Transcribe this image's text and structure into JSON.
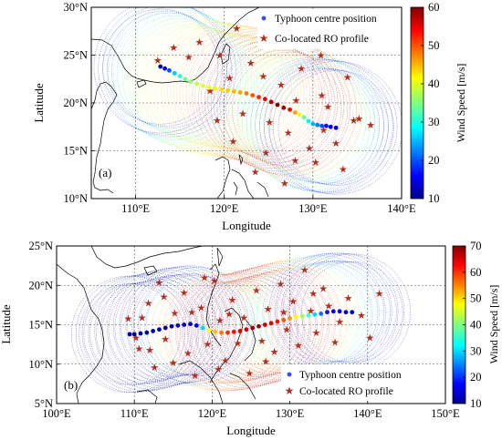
{
  "chart_data": [
    {
      "type": "scatter",
      "panel_label": "(a)",
      "xlabel": "Longitude",
      "ylabel": "Latitude",
      "xlim": [
        105,
        140
      ],
      "ylim": [
        10,
        30
      ],
      "x_ticks": [
        {
          "value": 110,
          "label": "110°E"
        },
        {
          "value": 120,
          "label": "120°E"
        },
        {
          "value": 130,
          "label": "130°E"
        },
        {
          "value": 140,
          "label": "140°E"
        }
      ],
      "y_ticks": [
        {
          "value": 10,
          "label": "10°N"
        },
        {
          "value": 15,
          "label": "15°N"
        },
        {
          "value": 20,
          "label": "20°N"
        },
        {
          "value": 25,
          "label": "25°N"
        },
        {
          "value": 30,
          "label": "30°N"
        }
      ],
      "grid": true,
      "legend_position": "top-right",
      "legend": [
        "Typhoon centre position",
        "Co-located RO profile"
      ],
      "colorbar": {
        "label": "Wind Speed [m/s]",
        "min": 10,
        "max": 60,
        "ticks": [
          {
            "value": 10,
            "label": "10"
          },
          {
            "value": 20,
            "label": "20"
          },
          {
            "value": 30,
            "label": "30"
          },
          {
            "value": 40,
            "label": "40"
          },
          {
            "value": 50,
            "label": "50"
          },
          {
            "value": 60,
            "label": "60"
          }
        ]
      },
      "track": [
        {
          "lon": 132.6,
          "lat": 17.4,
          "ws": 13
        },
        {
          "lon": 132.0,
          "lat": 17.5,
          "ws": 15
        },
        {
          "lon": 131.5,
          "lat": 17.6,
          "ws": 17
        },
        {
          "lon": 131.0,
          "lat": 17.6,
          "ws": 20
        },
        {
          "lon": 130.5,
          "lat": 17.7,
          "ws": 22
        },
        {
          "lon": 130.0,
          "lat": 17.8,
          "ws": 25
        },
        {
          "lon": 129.5,
          "lat": 18.1,
          "ws": 28
        },
        {
          "lon": 129.0,
          "lat": 18.5,
          "ws": 34
        },
        {
          "lon": 128.5,
          "lat": 18.8,
          "ws": 40
        },
        {
          "lon": 128.0,
          "lat": 19.0,
          "ws": 46
        },
        {
          "lon": 127.4,
          "lat": 19.3,
          "ws": 54
        },
        {
          "lon": 126.7,
          "lat": 19.5,
          "ws": 58
        },
        {
          "lon": 126.0,
          "lat": 19.8,
          "ws": 60
        },
        {
          "lon": 125.3,
          "lat": 20.1,
          "ws": 58
        },
        {
          "lon": 124.6,
          "lat": 20.4,
          "ws": 55
        },
        {
          "lon": 123.9,
          "lat": 20.6,
          "ws": 52
        },
        {
          "lon": 123.2,
          "lat": 20.8,
          "ws": 50
        },
        {
          "lon": 122.5,
          "lat": 21.0,
          "ws": 48
        },
        {
          "lon": 121.8,
          "lat": 21.1,
          "ws": 46
        },
        {
          "lon": 121.1,
          "lat": 21.2,
          "ws": 45
        },
        {
          "lon": 120.4,
          "lat": 21.3,
          "ws": 44
        },
        {
          "lon": 119.7,
          "lat": 21.4,
          "ws": 43
        },
        {
          "lon": 119.0,
          "lat": 21.5,
          "ws": 42
        },
        {
          "lon": 118.3,
          "lat": 21.6,
          "ws": 41
        },
        {
          "lon": 117.6,
          "lat": 21.8,
          "ws": 40
        },
        {
          "lon": 116.9,
          "lat": 22.0,
          "ws": 38
        },
        {
          "lon": 116.2,
          "lat": 22.2,
          "ws": 36
        },
        {
          "lon": 115.6,
          "lat": 22.5,
          "ws": 34
        },
        {
          "lon": 115.0,
          "lat": 22.8,
          "ws": 30
        },
        {
          "lon": 114.4,
          "lat": 23.1,
          "ws": 26
        },
        {
          "lon": 113.8,
          "lat": 23.4,
          "ws": 20
        },
        {
          "lon": 113.3,
          "lat": 23.6,
          "ws": 14
        },
        {
          "lon": 112.8,
          "lat": 23.8,
          "ws": 11
        }
      ],
      "ro_profiles": [
        [
          112.5,
          24.5
        ],
        [
          114.3,
          25.8
        ],
        [
          116.0,
          24.8
        ],
        [
          117.2,
          26.4
        ],
        [
          119.5,
          25.0
        ],
        [
          121.4,
          27.8
        ],
        [
          123.0,
          24.2
        ],
        [
          118.4,
          21.3
        ],
        [
          120.6,
          22.6
        ],
        [
          122.1,
          18.9
        ],
        [
          124.4,
          22.8
        ],
        [
          125.1,
          18.0
        ],
        [
          126.4,
          21.9
        ],
        [
          127.2,
          16.9
        ],
        [
          128.1,
          20.3
        ],
        [
          128.7,
          23.6
        ],
        [
          129.6,
          15.3
        ],
        [
          130.3,
          13.8
        ],
        [
          131.2,
          17.2
        ],
        [
          131.7,
          19.6
        ],
        [
          132.6,
          15.8
        ],
        [
          133.4,
          13.1
        ],
        [
          134.6,
          18.2
        ],
        [
          135.2,
          18.4
        ],
        [
          136.5,
          17.7
        ],
        [
          126.8,
          11.6
        ],
        [
          124.7,
          14.8
        ],
        [
          123.5,
          12.8
        ],
        [
          128.0,
          14.0
        ],
        [
          131.0,
          20.8
        ],
        [
          119.2,
          18.2
        ],
        [
          121.0,
          16.0
        ],
        [
          130.9,
          25.0
        ],
        [
          133.9,
          22.7
        ]
      ]
    },
    {
      "type": "scatter",
      "panel_label": "(b)",
      "xlabel": "Longitude",
      "ylabel": "Latitude",
      "xlim": [
        100,
        150
      ],
      "ylim": [
        5,
        25
      ],
      "x_ticks": [
        {
          "value": 100,
          "label": "100°E"
        },
        {
          "value": 110,
          "label": "110°E"
        },
        {
          "value": 120,
          "label": "120°E"
        },
        {
          "value": 130,
          "label": "130°E"
        },
        {
          "value": 140,
          "label": "140°E"
        },
        {
          "value": 150,
          "label": "150°E"
        }
      ],
      "y_ticks": [
        {
          "value": 5,
          "label": "5°N"
        },
        {
          "value": 10,
          "label": "10°N"
        },
        {
          "value": 15,
          "label": "15°N"
        },
        {
          "value": 20,
          "label": "20°N"
        },
        {
          "value": 25,
          "label": "25°N"
        }
      ],
      "grid": true,
      "legend_position": "bottom-right",
      "legend": [
        "Typhoon centre position",
        "Co-located RO profile"
      ],
      "colorbar": {
        "label": "Wind Speed [m/s]",
        "min": 10,
        "max": 70,
        "ticks": [
          {
            "value": 10,
            "label": "10"
          },
          {
            "value": 20,
            "label": "20"
          },
          {
            "value": 30,
            "label": "30"
          },
          {
            "value": 40,
            "label": "40"
          },
          {
            "value": 50,
            "label": "50"
          },
          {
            "value": 60,
            "label": "60"
          },
          {
            "value": 70,
            "label": "70"
          }
        ]
      },
      "track": [
        {
          "lon": 138.0,
          "lat": 16.6,
          "ws": 15
        },
        {
          "lon": 137.2,
          "lat": 16.6,
          "ws": 15
        },
        {
          "lon": 136.4,
          "lat": 16.7,
          "ws": 16
        },
        {
          "lon": 135.6,
          "lat": 16.7,
          "ws": 17
        },
        {
          "lon": 134.8,
          "lat": 16.6,
          "ws": 18
        },
        {
          "lon": 134.0,
          "lat": 16.4,
          "ws": 24
        },
        {
          "lon": 133.2,
          "lat": 16.3,
          "ws": 30
        },
        {
          "lon": 132.4,
          "lat": 16.2,
          "ws": 36
        },
        {
          "lon": 131.6,
          "lat": 16.1,
          "ws": 42
        },
        {
          "lon": 130.8,
          "lat": 16.0,
          "ws": 48
        },
        {
          "lon": 130.0,
          "lat": 15.8,
          "ws": 54
        },
        {
          "lon": 129.2,
          "lat": 15.6,
          "ws": 58
        },
        {
          "lon": 128.4,
          "lat": 15.4,
          "ws": 62
        },
        {
          "lon": 127.6,
          "lat": 15.2,
          "ws": 64
        },
        {
          "lon": 126.8,
          "lat": 15.0,
          "ws": 66
        },
        {
          "lon": 126.0,
          "lat": 14.8,
          "ws": 68
        },
        {
          "lon": 125.2,
          "lat": 14.6,
          "ws": 68
        },
        {
          "lon": 124.4,
          "lat": 14.4,
          "ws": 66
        },
        {
          "lon": 123.6,
          "lat": 14.2,
          "ws": 64
        },
        {
          "lon": 122.8,
          "lat": 14.1,
          "ws": 62
        },
        {
          "lon": 122.0,
          "lat": 14.0,
          "ws": 60
        },
        {
          "lon": 121.2,
          "lat": 14.0,
          "ws": 56
        },
        {
          "lon": 120.4,
          "lat": 14.1,
          "ws": 52
        },
        {
          "lon": 119.6,
          "lat": 14.3,
          "ws": 48
        },
        {
          "lon": 118.8,
          "lat": 14.6,
          "ws": 30
        },
        {
          "lon": 118.0,
          "lat": 14.9,
          "ws": 16
        },
        {
          "lon": 117.2,
          "lat": 15.1,
          "ws": 14
        },
        {
          "lon": 116.4,
          "lat": 15.0,
          "ws": 13
        },
        {
          "lon": 115.6,
          "lat": 14.9,
          "ws": 13
        },
        {
          "lon": 114.8,
          "lat": 14.8,
          "ws": 12
        },
        {
          "lon": 114.0,
          "lat": 14.6,
          "ws": 12
        },
        {
          "lon": 113.2,
          "lat": 14.4,
          "ws": 12
        },
        {
          "lon": 112.4,
          "lat": 14.2,
          "ws": 12
        },
        {
          "lon": 111.6,
          "lat": 14.0,
          "ws": 11
        },
        {
          "lon": 110.8,
          "lat": 13.9,
          "ws": 11
        },
        {
          "lon": 110.0,
          "lat": 13.8,
          "ws": 11
        },
        {
          "lon": 109.4,
          "lat": 13.8,
          "ws": 11
        }
      ],
      "ro_profiles": [
        [
          109.2,
          15.8
        ],
        [
          110.6,
          12.0
        ],
        [
          111.8,
          17.8
        ],
        [
          112.6,
          9.6
        ],
        [
          113.2,
          20.4
        ],
        [
          114.0,
          13.2
        ],
        [
          115.2,
          16.5
        ],
        [
          116.4,
          19.1
        ],
        [
          116.9,
          11.4
        ],
        [
          117.8,
          8.6
        ],
        [
          118.6,
          17.2
        ],
        [
          119.4,
          12.6
        ],
        [
          120.3,
          20.6
        ],
        [
          121.0,
          15.6
        ],
        [
          121.7,
          10.5
        ],
        [
          122.6,
          18.2
        ],
        [
          123.3,
          12.7
        ],
        [
          124.1,
          15.9
        ],
        [
          124.8,
          8.9
        ],
        [
          125.7,
          19.4
        ],
        [
          126.4,
          13.0
        ],
        [
          127.2,
          17.0
        ],
        [
          128.0,
          11.6
        ],
        [
          128.8,
          20.2
        ],
        [
          129.6,
          14.4
        ],
        [
          130.4,
          18.0
        ],
        [
          131.1,
          12.4
        ],
        [
          131.9,
          22.0
        ],
        [
          132.7,
          16.8
        ],
        [
          133.4,
          14.0
        ],
        [
          134.3,
          19.6
        ],
        [
          135.0,
          17.4
        ],
        [
          135.8,
          12.8
        ],
        [
          136.4,
          15.4
        ],
        [
          137.5,
          18.4
        ],
        [
          139.2,
          16.2
        ],
        [
          140.3,
          13.4
        ],
        [
          141.5,
          19.0
        ],
        [
          110.2,
          13.4
        ],
        [
          111.0,
          15.9
        ],
        [
          112.0,
          11.8
        ],
        [
          113.8,
          18.6
        ],
        [
          115.0,
          10.2
        ],
        [
          117.4,
          16.6
        ],
        [
          119.0,
          21.0
        ],
        [
          120.8,
          9.4
        ],
        [
          122.2,
          16.4
        ],
        [
          126.9,
          10.4
        ],
        [
          129.2,
          16.6
        ],
        [
          133.0,
          19.0
        ]
      ]
    }
  ]
}
